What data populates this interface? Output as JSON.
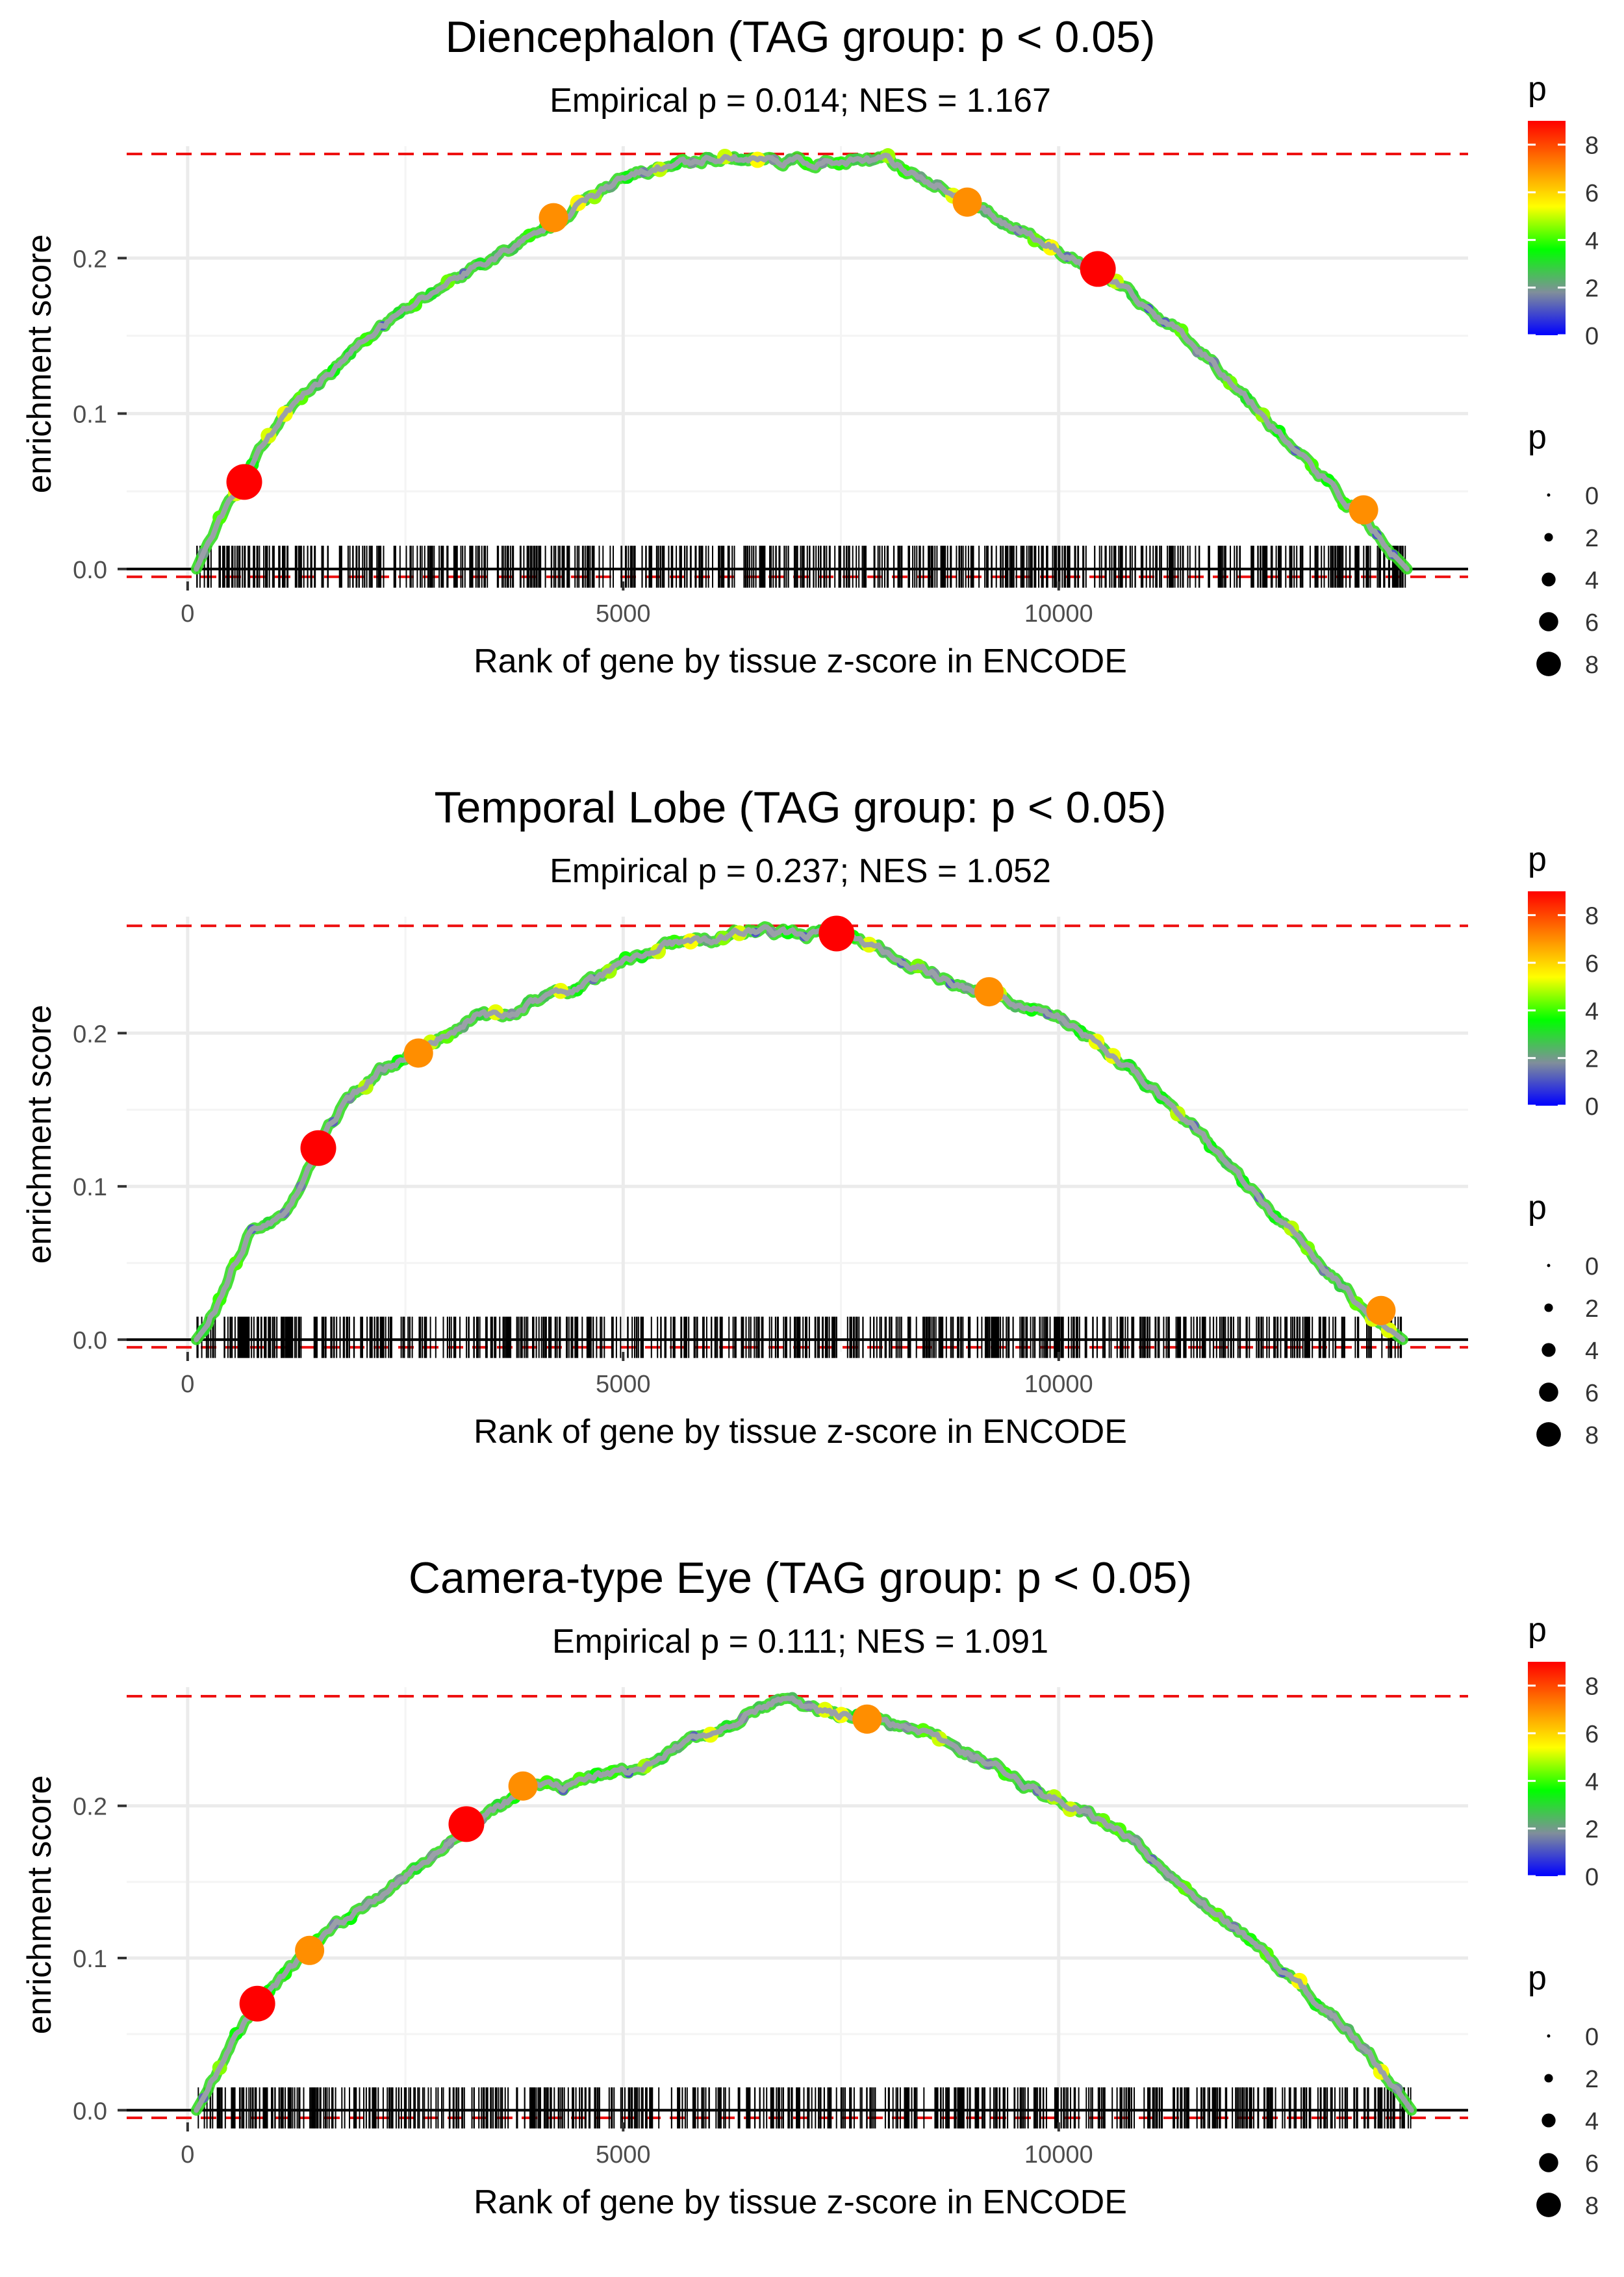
{
  "page": {
    "background": "#ffffff"
  },
  "colors": {
    "grid": "#ebebeb",
    "grid_minor": "#f4f4f4",
    "max_line": "#ee1111",
    "zero_line": "#000000",
    "ticks": "#000000",
    "curve_base": "#9aa0a8",
    "axis_text": "#4d4d4d"
  },
  "legends": {
    "color_title": "p",
    "color_ticks": [
      0,
      2,
      4,
      6,
      8
    ],
    "color_range": [
      0,
      9
    ],
    "color_stops": [
      "#0000ff",
      "#808e9b",
      "#00ff00",
      "#ffff00",
      "#ff8000",
      "#ff0000"
    ],
    "size_title": "p",
    "size_values": [
      0,
      2,
      4,
      6,
      8
    ]
  },
  "chart_data": [
    {
      "type": "line",
      "title": "Diencephalon (TAG group: p < 0.05)",
      "subtitle": "Empirical p = 0.014; NES = 1.167",
      "xlabel": "Rank of gene by tissue z-score in ENCODE",
      "ylabel": "enrichment score",
      "xlim": [
        -700,
        14700
      ],
      "ylim": [
        -0.008,
        0.272
      ],
      "x_ticks": [
        0,
        5000,
        10000
      ],
      "x_tick_labels": [
        "0",
        "5000",
        "10000"
      ],
      "y_ticks": [
        0.0,
        0.1,
        0.2
      ],
      "y_tick_labels": [
        "0.0",
        "0.1",
        "0.2"
      ],
      "max_es": 0.267,
      "min_es": -0.005,
      "gene_range": [
        100,
        14000
      ],
      "seed": 11,
      "curve": {
        "x": [
          100,
          300,
          600,
          900,
          1200,
          1500,
          1800,
          2200,
          2600,
          3000,
          3500,
          4000,
          4500,
          5000,
          5500,
          6000,
          6500,
          7000,
          7500,
          8000,
          8500,
          9000,
          9500,
          10000,
          10500,
          11000,
          11500,
          12000,
          12500,
          13000,
          13500,
          13800,
          14000
        ],
        "y": [
          0.0,
          0.025,
          0.055,
          0.082,
          0.104,
          0.12,
          0.135,
          0.155,
          0.17,
          0.185,
          0.2,
          0.215,
          0.235,
          0.251,
          0.259,
          0.265,
          0.264,
          0.262,
          0.261,
          0.263,
          0.25,
          0.235,
          0.22,
          0.205,
          0.19,
          0.168,
          0.148,
          0.12,
          0.09,
          0.06,
          0.032,
          0.012,
          0.0
        ]
      },
      "highlight_points": [
        {
          "x": 650,
          "y": 0.056,
          "p": 9
        },
        {
          "x": 4200,
          "y": 0.226,
          "p": 7
        },
        {
          "x": 8950,
          "y": 0.236,
          "p": 7
        },
        {
          "x": 10450,
          "y": 0.193,
          "p": 9
        },
        {
          "x": 13500,
          "y": 0.038,
          "p": 7
        }
      ]
    },
    {
      "type": "line",
      "title": "Temporal Lobe (TAG group: p < 0.05)",
      "subtitle": "Empirical p = 0.237; NES = 1.052",
      "xlabel": "Rank of gene by tissue z-score in ENCODE",
      "ylabel": "enrichment score",
      "xlim": [
        -700,
        14700
      ],
      "ylim": [
        -0.008,
        0.276
      ],
      "x_ticks": [
        0,
        5000,
        10000
      ],
      "x_tick_labels": [
        "0",
        "5000",
        "10000"
      ],
      "y_ticks": [
        0.0,
        0.1,
        0.2
      ],
      "y_tick_labels": [
        "0.0",
        "0.1",
        "0.2"
      ],
      "max_es": 0.27,
      "min_es": -0.005,
      "gene_range": [
        100,
        13950
      ],
      "seed": 23,
      "curve": {
        "x": [
          100,
          300,
          500,
          700,
          1000,
          1200,
          1500,
          1800,
          2200,
          2600,
          3000,
          3300,
          3600,
          4000,
          4500,
          5000,
          5500,
          6000,
          6500,
          7000,
          7500,
          8000,
          8500,
          9000,
          9500,
          10000,
          10500,
          11000,
          11500,
          12000,
          12500,
          13000,
          13500,
          13950
        ],
        "y": [
          0.0,
          0.015,
          0.045,
          0.068,
          0.077,
          0.09,
          0.125,
          0.155,
          0.175,
          0.188,
          0.2,
          0.212,
          0.21,
          0.222,
          0.23,
          0.245,
          0.258,
          0.26,
          0.268,
          0.264,
          0.265,
          0.253,
          0.24,
          0.228,
          0.22,
          0.21,
          0.19,
          0.168,
          0.143,
          0.11,
          0.08,
          0.05,
          0.02,
          0.0
        ]
      },
      "highlight_points": [
        {
          "x": 1500,
          "y": 0.125,
          "p": 9
        },
        {
          "x": 2650,
          "y": 0.187,
          "p": 7
        },
        {
          "x": 7450,
          "y": 0.265,
          "p": 9
        },
        {
          "x": 9200,
          "y": 0.227,
          "p": 7
        },
        {
          "x": 13700,
          "y": 0.019,
          "p": 7
        }
      ]
    },
    {
      "type": "line",
      "title": "Camera-type Eye (TAG group: p < 0.05)",
      "subtitle": "Empirical p = 0.111; NES = 1.091",
      "xlabel": "Rank of gene by tissue z-score in ENCODE",
      "ylabel": "enrichment score",
      "xlim": [
        -700,
        14700
      ],
      "ylim": [
        -0.008,
        0.278
      ],
      "x_ticks": [
        0,
        5000,
        10000
      ],
      "x_tick_labels": [
        "0",
        "5000",
        "10000"
      ],
      "y_ticks": [
        0.0,
        0.1,
        0.2
      ],
      "y_tick_labels": [
        "0.0",
        "0.1",
        "0.2"
      ],
      "max_es": 0.272,
      "min_es": -0.005,
      "gene_range": [
        100,
        14050
      ],
      "seed": 37,
      "curve": {
        "x": [
          100,
          300,
          500,
          800,
          1100,
          1400,
          1800,
          2200,
          2600,
          3000,
          3300,
          3600,
          3900,
          4300,
          4700,
          5100,
          5500,
          6000,
          6500,
          6800,
          7200,
          7800,
          8300,
          8800,
          9300,
          9800,
          10300,
          10800,
          11300,
          11800,
          12300,
          12800,
          13300,
          13800,
          14050
        ],
        "y": [
          0.0,
          0.02,
          0.045,
          0.07,
          0.088,
          0.105,
          0.125,
          0.142,
          0.158,
          0.175,
          0.19,
          0.2,
          0.213,
          0.212,
          0.22,
          0.222,
          0.235,
          0.248,
          0.262,
          0.271,
          0.262,
          0.257,
          0.25,
          0.24,
          0.225,
          0.208,
          0.197,
          0.18,
          0.155,
          0.13,
          0.105,
          0.08,
          0.053,
          0.02,
          0.0
        ]
      },
      "highlight_points": [
        {
          "x": 800,
          "y": 0.07,
          "p": 9
        },
        {
          "x": 1400,
          "y": 0.105,
          "p": 7
        },
        {
          "x": 3200,
          "y": 0.188,
          "p": 9
        },
        {
          "x": 3850,
          "y": 0.213,
          "p": 7
        },
        {
          "x": 7800,
          "y": 0.257,
          "p": 7
        }
      ]
    }
  ]
}
